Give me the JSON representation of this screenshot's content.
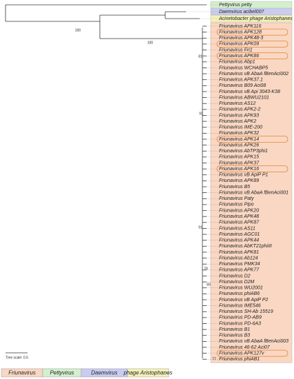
{
  "leaves": [
    {
      "label": "Pettyvirus petty",
      "group": "Pettyvirus"
    },
    {
      "label": "Daemvirus acibel007",
      "group": "Daemvirus"
    },
    {
      "label": "Acinetobacter phage Aristophanes",
      "group": "phage Aristophanes"
    },
    {
      "label": "Friunavirus APK116",
      "group": "Friunavirus"
    },
    {
      "label": "Friunavirus APK128",
      "group": "Friunavirus",
      "circled": true
    },
    {
      "label": "Friunavirus APK48-3",
      "group": "Friunavirus"
    },
    {
      "label": "Friunavirus APK09",
      "group": "Friunavirus",
      "circled": true
    },
    {
      "label": "Friunavirus Fri1",
      "group": "Friunavirus"
    },
    {
      "label": "Friunavirus APK86",
      "group": "Friunavirus",
      "circled": true
    },
    {
      "label": "Friunavirus Abp1",
      "group": "Friunavirus"
    },
    {
      "label": "Friunavirus WCHABP5",
      "group": "Friunavirus"
    },
    {
      "label": "Friunavirus vB AbaA fBenAci002",
      "group": "Friunavirus"
    },
    {
      "label": "Friunavirus APK37.1",
      "group": "Friunavirus"
    },
    {
      "label": "Friunavirus B09 Aci08",
      "group": "Friunavirus"
    },
    {
      "label": "Friunavirus vB Api 3043-K38",
      "group": "Friunavirus"
    },
    {
      "label": "Friunavirus ABWU2101",
      "group": "Friunavirus"
    },
    {
      "label": "Friunavirus AS12",
      "group": "Friunavirus"
    },
    {
      "label": "Friunavirus APK2-2",
      "group": "Friunavirus"
    },
    {
      "label": "Friunavirus APK93",
      "group": "Friunavirus"
    },
    {
      "label": "Friunavirus APK2",
      "group": "Friunavirus"
    },
    {
      "label": "Friunavirus IME-200",
      "group": "Friunavirus"
    },
    {
      "label": "Friunavirus APK32",
      "group": "Friunavirus"
    },
    {
      "label": "Friunavirus APK14",
      "group": "Friunavirus",
      "circled": true
    },
    {
      "label": "Friunavirus APK26",
      "group": "Friunavirus"
    },
    {
      "label": "Friunavirus AbTP3phi1",
      "group": "Friunavirus"
    },
    {
      "label": "Friunavirus APK15",
      "group": "Friunavirus"
    },
    {
      "label": "Friunavirus APK37",
      "group": "Friunavirus"
    },
    {
      "label": "Friunavirus APK16",
      "group": "Friunavirus",
      "circled": true
    },
    {
      "label": "Friunavirus vB ApiP P1",
      "group": "Friunavirus"
    },
    {
      "label": "Friunavirus APK89",
      "group": "Friunavirus"
    },
    {
      "label": "Friunavirus B5",
      "group": "Friunavirus"
    },
    {
      "label": "Friunavirus vB AbaA fBenAci001",
      "group": "Friunavirus"
    },
    {
      "label": "Friunavirus Paty",
      "group": "Friunavirus"
    },
    {
      "label": "Friunavirus Pipo",
      "group": "Friunavirus"
    },
    {
      "label": "Friunavirus APK20",
      "group": "Friunavirus"
    },
    {
      "label": "Friunavirus APK48",
      "group": "Friunavirus"
    },
    {
      "label": "Friunavirus APK87",
      "group": "Friunavirus"
    },
    {
      "label": "Friunavirus AS11",
      "group": "Friunavirus"
    },
    {
      "label": "Friunavirus AGC01",
      "group": "Friunavirus"
    },
    {
      "label": "Friunavirus APK44",
      "group": "Friunavirus"
    },
    {
      "label": "Friunavirus AbKT21phiIII",
      "group": "Friunavirus"
    },
    {
      "label": "Friunavirus APK81",
      "group": "Friunavirus"
    },
    {
      "label": "Friunavirus Ab124",
      "group": "Friunavirus"
    },
    {
      "label": "Friunavirus PMK34",
      "group": "Friunavirus"
    },
    {
      "label": "Friunavirus APK77",
      "group": "Friunavirus"
    },
    {
      "label": "Friunavirus D2",
      "group": "Friunavirus"
    },
    {
      "label": "Friunavirus D2M",
      "group": "Friunavirus"
    },
    {
      "label": "Friunavirus WU2001",
      "group": "Friunavirus"
    },
    {
      "label": "Friunavirus phiAB6",
      "group": "Friunavirus"
    },
    {
      "label": "Friunavirus vB ApiP P2",
      "group": "Friunavirus"
    },
    {
      "label": "Friunavirus IME546",
      "group": "Friunavirus"
    },
    {
      "label": "Friunavirus SH-Ab 15519",
      "group": "Friunavirus"
    },
    {
      "label": "Friunavirus PD-AB9",
      "group": "Friunavirus"
    },
    {
      "label": "Friunavirus PD-6A3",
      "group": "Friunavirus"
    },
    {
      "label": "Friunavirus B1",
      "group": "Friunavirus"
    },
    {
      "label": "Friunavirus B3",
      "group": "Friunavirus"
    },
    {
      "label": "Friunavirus vB AbaA fBenAci003",
      "group": "Friunavirus"
    },
    {
      "label": "Friunavirus 46-62 Aci07",
      "group": "Friunavirus"
    },
    {
      "label": "Friunavirus APK127v",
      "group": "Friunavirus",
      "circled": true
    },
    {
      "label": "Friunavirus phiAB1",
      "group": "Friunavirus"
    }
  ],
  "bootstrap": [
    100,
    100,
    81,
    91,
    91,
    79,
    83,
    77
  ],
  "tree_scale": "Tree scale: 0.5",
  "legend": [
    {
      "label": "Friunavirus",
      "color": "#f9d7c3"
    },
    {
      "label": "Pettyvirus",
      "color": "#d3efcd"
    },
    {
      "label": "Daemvirus",
      "color": "#c9ccf0"
    },
    {
      "label": "phage Aristophanes",
      "color": "#f4f1b8"
    }
  ]
}
